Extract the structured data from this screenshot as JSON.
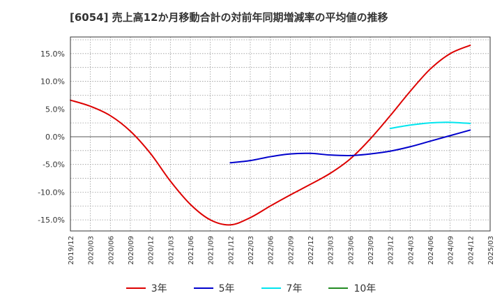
{
  "chart_data": {
    "type": "line",
    "title": "[6054]  売上高12か月移動合計の対前年同期増減率の平均値の推移",
    "x_ticks": [
      "2019/12",
      "2020/03",
      "2020/06",
      "2020/09",
      "2020/12",
      "2021/03",
      "2021/06",
      "2021/09",
      "2021/12",
      "2022/03",
      "2022/06",
      "2022/09",
      "2022/12",
      "2023/03",
      "2023/06",
      "2023/09",
      "2023/12",
      "2024/03",
      "2024/06",
      "2024/09",
      "2024/12",
      "2025/03"
    ],
    "y_ticks": [
      "15.0%",
      "10.0%",
      "5.0%",
      "0.0%",
      "-5.0%",
      "-10.0%",
      "-15.0%"
    ],
    "y_tick_values": [
      15,
      10,
      5,
      0,
      -5,
      -10,
      -15
    ],
    "ylim": [
      -17,
      18
    ],
    "series": [
      {
        "name": "3年",
        "color": "#dd0000",
        "start_index": 0,
        "values": [
          6.6,
          5.5,
          3.8,
          1.0,
          -3.0,
          -8.0,
          -12.2,
          -15.0,
          -15.9,
          -14.6,
          -12.5,
          -10.5,
          -8.6,
          -6.6,
          -4.0,
          -0.4,
          3.8,
          8.2,
          12.2,
          15.0,
          16.5
        ]
      },
      {
        "name": "5年",
        "color": "#0000cc",
        "start_index": 8,
        "values": [
          -4.7,
          -4.3,
          -3.6,
          -3.1,
          -3.0,
          -3.3,
          -3.4,
          -3.1,
          -2.6,
          -1.8,
          -0.8,
          0.2,
          1.2
        ]
      },
      {
        "name": "7年",
        "color": "#00e5ee",
        "start_index": 16,
        "values": [
          1.5,
          2.1,
          2.5,
          2.6,
          2.4
        ]
      },
      {
        "name": "10年",
        "color": "#228b22",
        "start_index": 21,
        "values": []
      }
    ]
  }
}
